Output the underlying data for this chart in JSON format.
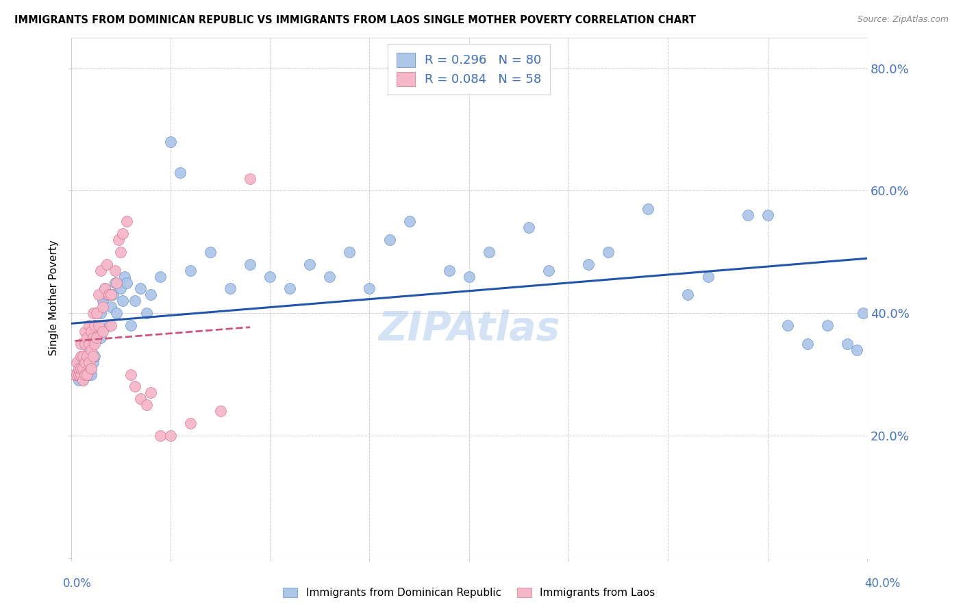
{
  "title": "IMMIGRANTS FROM DOMINICAN REPUBLIC VS IMMIGRANTS FROM LAOS SINGLE MOTHER POVERTY CORRELATION CHART",
  "source": "Source: ZipAtlas.com",
  "ylabel": "Single Mother Poverty",
  "xmin": 0.0,
  "xmax": 0.4,
  "ymin": 0.0,
  "ymax": 0.85,
  "color_blue_fill": "#aec6e8",
  "color_blue_edge": "#5b8fc9",
  "color_pink_fill": "#f5b8c8",
  "color_pink_edge": "#d97090",
  "color_blue_text": "#4472c4",
  "color_trendline_blue": "#2255aa",
  "color_trendline_pink": "#cc5577",
  "color_grid": "#cccccc",
  "watermark_color": "#b0ccee",
  "blue_x": [
    0.002,
    0.003,
    0.004,
    0.004,
    0.005,
    0.005,
    0.005,
    0.006,
    0.006,
    0.007,
    0.007,
    0.007,
    0.008,
    0.008,
    0.008,
    0.009,
    0.009,
    0.009,
    0.01,
    0.01,
    0.01,
    0.011,
    0.011,
    0.012,
    0.012,
    0.013,
    0.013,
    0.014,
    0.015,
    0.015,
    0.016,
    0.017,
    0.018,
    0.019,
    0.02,
    0.021,
    0.022,
    0.023,
    0.025,
    0.026,
    0.027,
    0.028,
    0.03,
    0.032,
    0.035,
    0.038,
    0.04,
    0.045,
    0.05,
    0.055,
    0.06,
    0.07,
    0.08,
    0.09,
    0.1,
    0.11,
    0.12,
    0.13,
    0.14,
    0.15,
    0.16,
    0.17,
    0.19,
    0.2,
    0.21,
    0.23,
    0.24,
    0.26,
    0.27,
    0.29,
    0.31,
    0.32,
    0.34,
    0.35,
    0.36,
    0.37,
    0.38,
    0.39,
    0.395,
    0.398
  ],
  "blue_y": [
    0.3,
    0.3,
    0.29,
    0.32,
    0.3,
    0.31,
    0.32,
    0.29,
    0.31,
    0.3,
    0.31,
    0.33,
    0.3,
    0.31,
    0.33,
    0.3,
    0.32,
    0.34,
    0.3,
    0.31,
    0.33,
    0.32,
    0.35,
    0.33,
    0.38,
    0.36,
    0.4,
    0.37,
    0.36,
    0.4,
    0.42,
    0.44,
    0.43,
    0.38,
    0.41,
    0.43,
    0.45,
    0.4,
    0.44,
    0.42,
    0.46,
    0.45,
    0.38,
    0.42,
    0.44,
    0.4,
    0.43,
    0.46,
    0.68,
    0.63,
    0.47,
    0.5,
    0.44,
    0.48,
    0.46,
    0.44,
    0.48,
    0.46,
    0.5,
    0.44,
    0.52,
    0.55,
    0.47,
    0.46,
    0.5,
    0.54,
    0.47,
    0.48,
    0.5,
    0.57,
    0.43,
    0.46,
    0.56,
    0.56,
    0.38,
    0.35,
    0.38,
    0.35,
    0.34,
    0.4
  ],
  "pink_x": [
    0.002,
    0.003,
    0.003,
    0.004,
    0.004,
    0.005,
    0.005,
    0.005,
    0.005,
    0.006,
    0.006,
    0.006,
    0.007,
    0.007,
    0.007,
    0.007,
    0.008,
    0.008,
    0.008,
    0.009,
    0.009,
    0.009,
    0.01,
    0.01,
    0.01,
    0.011,
    0.011,
    0.011,
    0.012,
    0.012,
    0.013,
    0.013,
    0.014,
    0.014,
    0.015,
    0.016,
    0.016,
    0.017,
    0.018,
    0.019,
    0.02,
    0.02,
    0.022,
    0.023,
    0.024,
    0.025,
    0.026,
    0.028,
    0.03,
    0.032,
    0.035,
    0.038,
    0.04,
    0.045,
    0.05,
    0.06,
    0.075,
    0.09
  ],
  "pink_y": [
    0.3,
    0.3,
    0.32,
    0.3,
    0.31,
    0.3,
    0.31,
    0.33,
    0.35,
    0.29,
    0.31,
    0.33,
    0.3,
    0.32,
    0.35,
    0.37,
    0.3,
    0.33,
    0.36,
    0.32,
    0.35,
    0.38,
    0.31,
    0.34,
    0.37,
    0.33,
    0.36,
    0.4,
    0.35,
    0.38,
    0.36,
    0.4,
    0.38,
    0.43,
    0.47,
    0.37,
    0.41,
    0.44,
    0.48,
    0.43,
    0.38,
    0.43,
    0.47,
    0.45,
    0.52,
    0.5,
    0.53,
    0.55,
    0.3,
    0.28,
    0.26,
    0.25,
    0.27,
    0.2,
    0.2,
    0.22,
    0.24,
    0.62
  ],
  "legend1_r": "R = 0.296",
  "legend1_n": "N = 80",
  "legend2_r": "R = 0.084",
  "legend2_n": "N = 58"
}
